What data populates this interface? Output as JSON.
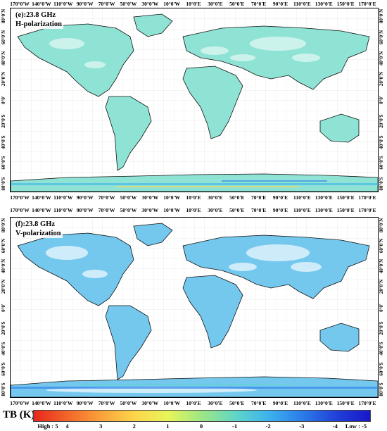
{
  "panels": [
    {
      "title_line1": "(e):23.8 GHz",
      "title_line2": "H-polarization"
    },
    {
      "title_line1": "(f):23.8 GHz",
      "title_line2": "V-polarization"
    }
  ],
  "lon_labels": [
    "170°0'W",
    "140°0'W",
    "110°0'W",
    "90°0'W",
    "70°0'W",
    "50°0'W",
    "30°0'W",
    "10°0'W",
    "10°0'E",
    "30°0'E",
    "50°0'E",
    "70°0'E",
    "90°0'E",
    "110°0'E",
    "130°0'E",
    "150°0'E",
    "170°0'E"
  ],
  "lat_labels": [
    "80°0'N",
    "60°0'N",
    "40°0'N",
    "20°0'N",
    "0°0'",
    "20°0'S",
    "40°0'S",
    "60°0'S",
    "80°0'S"
  ],
  "legend": {
    "title": "TB (K)",
    "ticks": [
      "High : 5",
      "4",
      "3",
      "2",
      "1",
      "0",
      "-1",
      "-2",
      "-3",
      "-4",
      "Low : -5"
    ],
    "colors": [
      "#e8261c",
      "#f2662a",
      "#f9a23a",
      "#fdd64a",
      "#e6f55a",
      "#9ee684",
      "#5fd6c7",
      "#3cb2ee",
      "#2b7be8",
      "#2040d8",
      "#1818c8"
    ]
  }
}
